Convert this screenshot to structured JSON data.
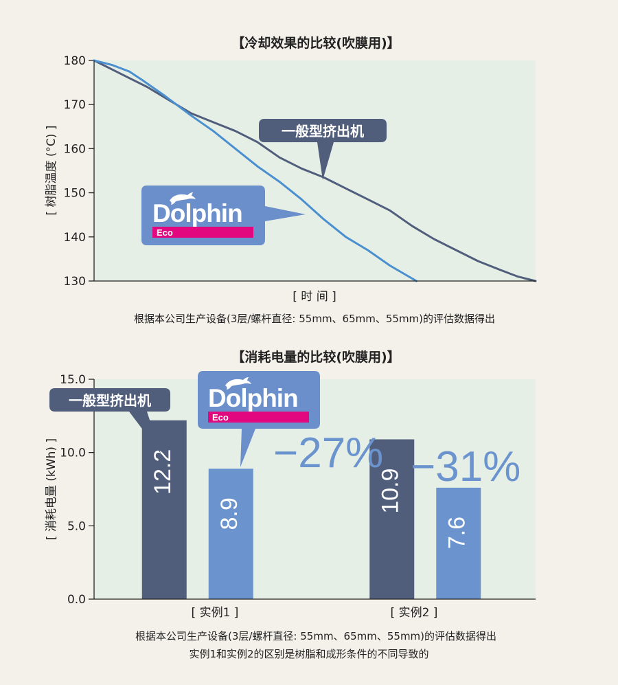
{
  "colors": {
    "background": "#f3f1ea",
    "plot_area": "#e6efe6",
    "general_extruder": "#505e7c",
    "dolphin": "#4a8fcf",
    "dolphin_bar": "#6b94cf",
    "dolphin_badge": "#6b8fcb",
    "eco_magenta": "#e2067f",
    "pct_text": "#6b94cf"
  },
  "chart_data": [
    {
      "type": "line",
      "title": "【冷却效果的比较(吹膜用)】",
      "xlabel": "[ 时 间 ]",
      "ylabel": "[ 树脂温度 (°C) ]",
      "ylim": [
        130,
        180
      ],
      "yticks": [
        "130",
        "140",
        "150",
        "160",
        "170",
        "180"
      ],
      "xlim": [
        0,
        100
      ],
      "grid": false,
      "series": [
        {
          "name": "一般型挤出机",
          "x": [
            0,
            4,
            8,
            12,
            17,
            22,
            27,
            32,
            37,
            42,
            47,
            52,
            57,
            62,
            67,
            72,
            77,
            82,
            87,
            92,
            96,
            100
          ],
          "y": [
            180,
            178,
            176,
            174,
            171,
            168,
            166,
            164,
            161.5,
            158,
            155.5,
            153.5,
            151,
            148.5,
            146,
            142.5,
            139.5,
            137,
            134.5,
            132.5,
            131,
            130
          ]
        },
        {
          "name": "Dolphin Eco",
          "x": [
            0,
            4,
            8,
            11,
            16,
            22,
            27,
            32,
            37,
            42,
            47,
            52,
            57,
            62,
            67,
            73
          ],
          "y": [
            180,
            179,
            177.5,
            175.5,
            172,
            167.5,
            164,
            160,
            156,
            152.5,
            148.5,
            144,
            140,
            137,
            133.5,
            130
          ]
        }
      ],
      "callouts": [
        {
          "label": "一般型挤出机"
        },
        {
          "logo": "Dolphin",
          "sub": "Eco"
        }
      ],
      "footnote": "根据本公司生产设备(3层/螺杆直径: 55mm、65mm、55mm)的评估数据得出"
    },
    {
      "type": "bar",
      "title": "【消耗电量的比较(吹膜用)】",
      "xlabel": "",
      "ylabel": "[ 消耗电量 (kWh) ]",
      "ylim": [
        0,
        15
      ],
      "yticks": [
        "0.0",
        "5.0",
        "10.0",
        "15.0"
      ],
      "categories": [
        "[ 实例1 ]",
        "[ 实例2 ]"
      ],
      "series": [
        {
          "name": "一般型挤出机",
          "values": [
            12.2,
            10.9
          ],
          "labels": [
            "12.2",
            "10.9"
          ]
        },
        {
          "name": "Dolphin Eco",
          "values": [
            8.9,
            7.6
          ],
          "labels": [
            "8.9",
            "7.6"
          ]
        }
      ],
      "reductions": [
        "−27%",
        "−31%"
      ],
      "callouts": [
        {
          "label": "一般型挤出机"
        },
        {
          "logo": "Dolphin",
          "sub": "Eco"
        }
      ],
      "footnotes": [
        "根据本公司生产设备(3层/螺杆直径: 55mm、65mm、55mm)的评估数据得出",
        "实例1和实例2的区别是树脂和成形条件的不同导致的"
      ]
    }
  ],
  "logo": {
    "name": "Dolphin",
    "sub": "Eco",
    "icon": "dolphin-icon"
  }
}
